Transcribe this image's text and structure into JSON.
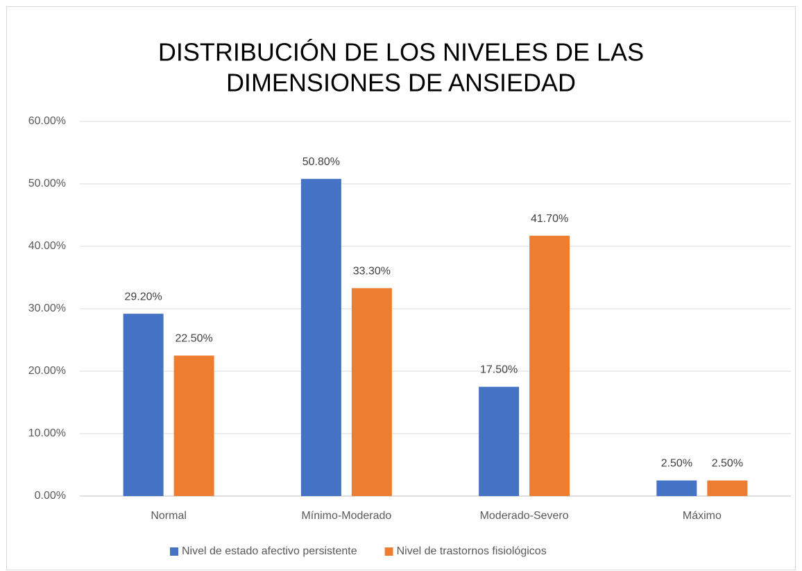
{
  "chart_data": {
    "type": "bar",
    "title": [
      "DISTRIBUCIÓN DE LOS NIVELES DE LAS",
      "DIMENSIONES DE ANSIEDAD"
    ],
    "categories": [
      "Normal",
      "Mínimo-Moderado",
      "Moderado-Severo",
      "Máximo"
    ],
    "series": [
      {
        "name": "Nivel de estado afectivo persistente",
        "color": "#4472c4",
        "values": [
          29.2,
          50.8,
          17.5,
          2.5
        ],
        "value_labels": [
          "29.20%",
          "50.80%",
          "17.50%",
          "2.50%"
        ]
      },
      {
        "name": "Nivel de trastornos fisiológicos",
        "color": "#ed7d31",
        "values": [
          22.5,
          33.3,
          41.7,
          2.5
        ],
        "value_labels": [
          "22.50%",
          "33.30%",
          "41.70%",
          "2.50%"
        ]
      }
    ],
    "ylim": [
      0,
      60
    ],
    "yticks": [
      {
        "value": 0,
        "label": "0.00%"
      },
      {
        "value": 10,
        "label": "10.00%"
      },
      {
        "value": 20,
        "label": "20.00%"
      },
      {
        "value": 30,
        "label": "30.00%"
      },
      {
        "value": 40,
        "label": "40.00%"
      },
      {
        "value": 50,
        "label": "50.00%"
      },
      {
        "value": 60,
        "label": "60.00%"
      }
    ],
    "grid": true,
    "legend": "bottom"
  }
}
